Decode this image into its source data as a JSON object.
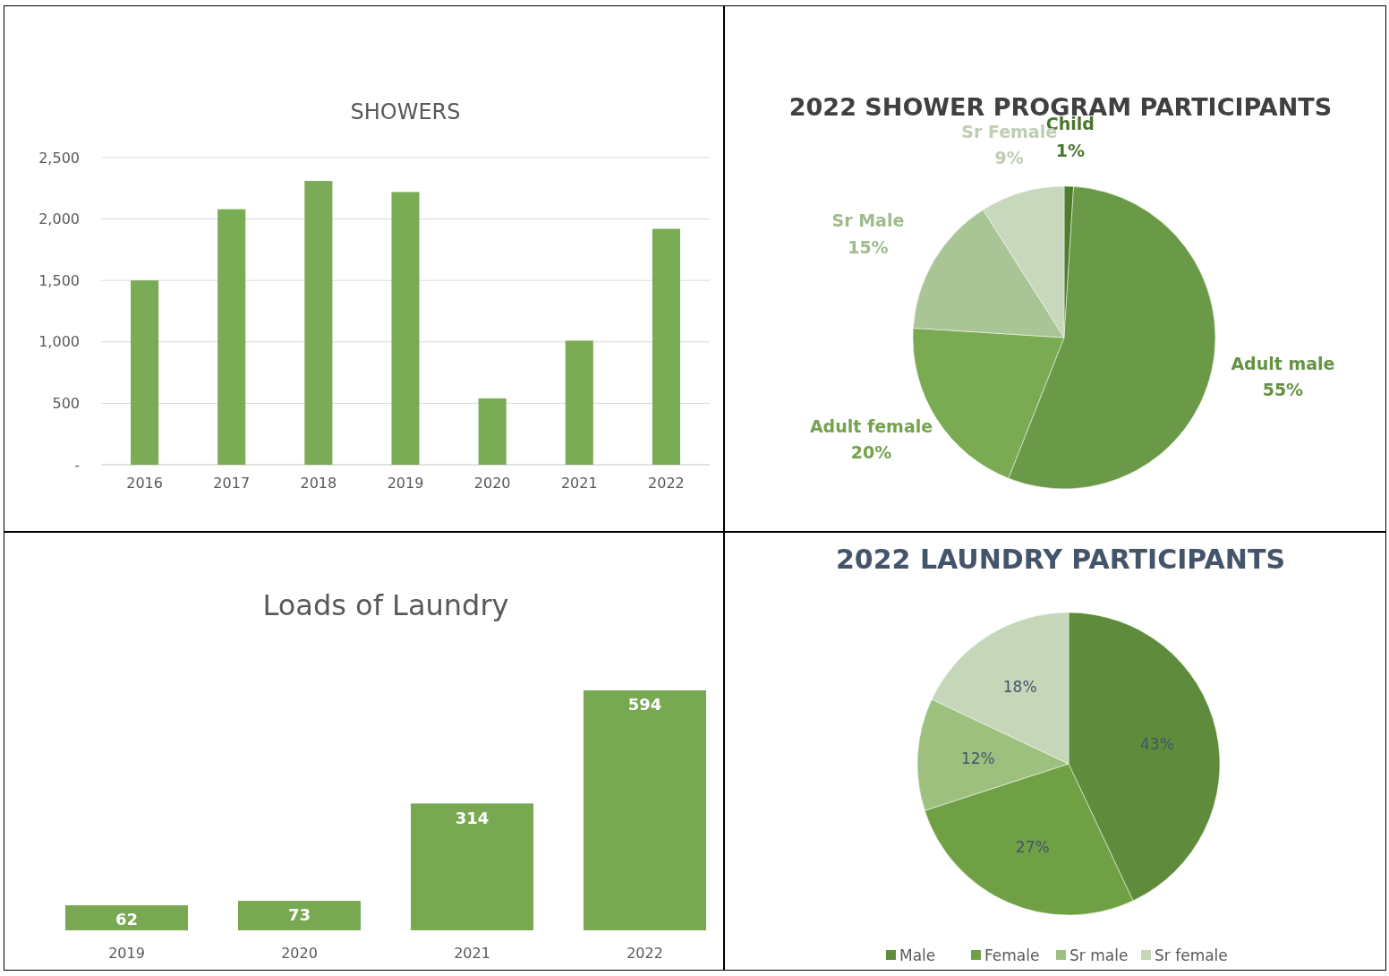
{
  "chart_data": [
    {
      "type": "bar",
      "title": "SHOWERS",
      "categories": [
        "2016",
        "2017",
        "2018",
        "2019",
        "2020",
        "2021",
        "2022"
      ],
      "values": [
        1500,
        2080,
        2310,
        2220,
        540,
        1010,
        1920
      ],
      "color": "#7aab55",
      "ylim": [
        0,
        2500
      ],
      "yticks": [
        {
          "value": 0,
          "label": "-"
        },
        {
          "value": 500,
          "label": "500"
        },
        {
          "value": 1000,
          "label": "1,000"
        },
        {
          "value": 1500,
          "label": "1,500"
        },
        {
          "value": 2000,
          "label": "2,000"
        },
        {
          "value": 2500,
          "label": "2,500"
        }
      ],
      "grid": "y"
    },
    {
      "type": "pie",
      "title": "2022 SHOWER PROGRAM PARTICIPANTS",
      "categories": [
        "Child",
        "Adult male",
        "Adult female",
        "Sr Male",
        "Sr Female"
      ],
      "values": [
        1,
        55,
        20,
        15,
        9
      ],
      "value_labels": [
        "1%",
        "55%",
        "20%",
        "15%",
        "9%"
      ],
      "colors": [
        "#4e7d2e",
        "#6a9a48",
        "#7aab52",
        "#a9c595",
        "#c8d8bd"
      ],
      "legend": false
    },
    {
      "type": "bar",
      "title": "Loads of Laundry",
      "categories": [
        "2019",
        "2020",
        "2021",
        "2022"
      ],
      "values": [
        62,
        73,
        314,
        594
      ],
      "color": "#78a852",
      "data_labels": true
    },
    {
      "type": "pie",
      "title": "2022 LAUNDRY PARTICIPANTS",
      "categories": [
        "Male",
        "Female",
        "Sr male",
        "Sr female"
      ],
      "values": [
        43,
        27,
        12,
        18
      ],
      "value_labels": [
        "43%",
        "27%",
        "12%",
        "18%"
      ],
      "colors": [
        "#5e8c3c",
        "#70a044",
        "#9dc07f",
        "#c5d6b9"
      ],
      "legend": "bottom"
    }
  ]
}
